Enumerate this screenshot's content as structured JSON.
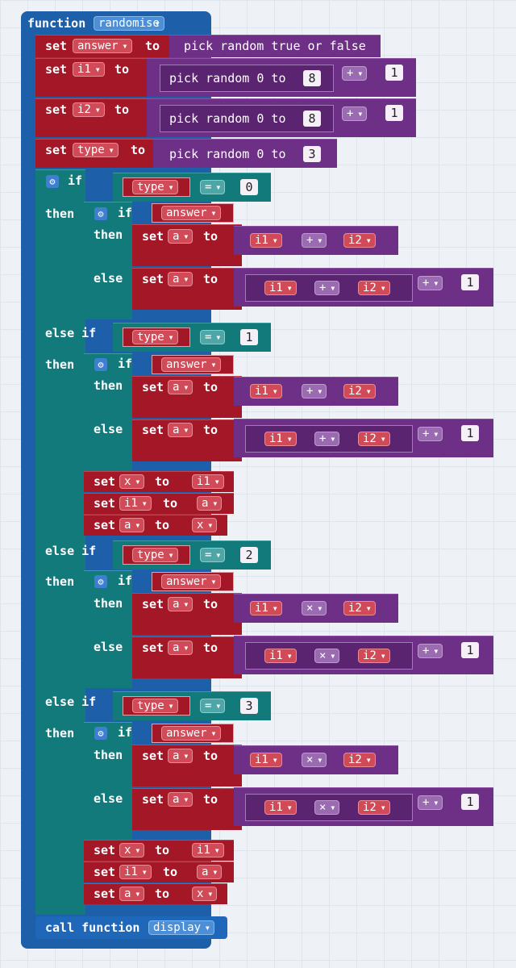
{
  "kw": {
    "function": "function",
    "set": "set",
    "to": "to",
    "if": "if",
    "then": "then",
    "else": "else",
    "else_if": "else if",
    "call_function": "call function",
    "pick_random": "pick random",
    "pick_random_bool": "pick random true or false",
    "pick_random_0_to": "pick random 0 to"
  },
  "func": {
    "name": "randomise"
  },
  "vars": {
    "answer": "answer",
    "i1": "i1",
    "i2": "i2",
    "type": "type",
    "a": "a",
    "x": "x"
  },
  "ops": {
    "plus": "+",
    "times": "×",
    "eq": "="
  },
  "nums": {
    "n0": "0",
    "n1": "1",
    "n2": "2",
    "n3": "3",
    "n8": "8"
  },
  "call": {
    "name": "display"
  },
  "colors": {
    "function": "#1d5fa8",
    "variables": "#a41727",
    "logic": "#137a7b",
    "math": "#6e2f86"
  }
}
